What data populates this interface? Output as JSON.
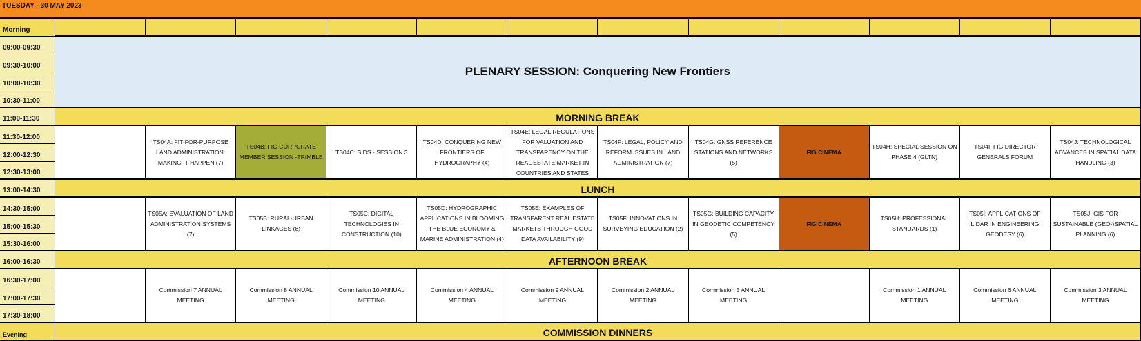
{
  "title": "TUESDAY - 30 MAY 2023",
  "labels": {
    "morning": "Morning",
    "evening": "Evening",
    "times": [
      "09:00-09:30",
      "09:30-10:00",
      "10:00-10:30",
      "10:30-11:00",
      "11:00-11:30",
      "11:30-12:00",
      "12:00-12:30",
      "12:30-13:00",
      "13:00-14:30",
      "14:30-15:00",
      "15:00-15:30",
      "15:30-16:00",
      "16:00-16:30",
      "16:30-17:00",
      "17:00-17:30",
      "17:30-18:00"
    ]
  },
  "plenary": "PLENARY SESSION: Conquering New Frontiers",
  "bands": {
    "morning_break": "MORNING BREAK",
    "lunch": "LUNCH",
    "afternoon_break": "AFTERNOON BREAK",
    "evening": "COMMISSION DINNERS"
  },
  "colors": {
    "title": "#F58B1F",
    "band": "#F2DC5A",
    "time_label": "#F5EEB5",
    "plenary": "#DEEBF6",
    "corporate": "#A4AD38",
    "cinema": "#C55A11"
  },
  "session_block_1": [
    "",
    "TS04A: FIT-FOR-PURPOSE LAND ADMINISTRATION: MAKING IT HAPPEN (7)",
    "TS04B: FIG CORPORATE MEMBER SESSION -TRIMBLE",
    "TS04C: SIDS - SESSION 3",
    "TS04D: CONQUERING NEW FRONTIERS OF HYDROGRAPHY (4)",
    "TS04E: LEGAL REGULATIONS FOR VALUATION AND TRANSPARENCY ON THE REAL ESTATE MARKET IN COUNTRIES AND STATES",
    "TS04F: LEGAL, POLICY AND REFORM ISSUES IN LAND ADMINISTRATION (7)",
    "TS04G: GNSS REFERENCE STATIONS AND NETWORKS (5)",
    "FIG CINEMA",
    "TS04H: SPECIAL SESSION ON PHASE 4 (GLTN)",
    "TS04I: FIG DIRECTOR GENERALS FORUM",
    "TS04J: TECHNOLOGICAL ADVANCES IN SPATIAL DATA HANDLING (3)"
  ],
  "session_block_2": [
    "",
    "TS05A: EVALUATION OF LAND ADMINISTRATION SYSTEMS (7)",
    "TS05B: RURAL-URBAN LINKAGES (8)",
    "TS05C: DIGITAL TECHNOLOGIES IN CONSTRUCTION (10)",
    "TS05D: HYDROGRAPHIC APPLICATIONS IN BLOOMING THE BLUE ECONOMY & MARINE ADMINISTRATION (4)",
    "TS05E: EXAMPLES OF TRANSPARENT REAL ESTATE MARKETS THROUGH GOOD DATA AVAILABILITY (9)",
    "TS05F: INNOVATIONS IN SURVEYING EDUCATION (2)",
    "TS05G: BUILDING CAPACITY IN GEODETIC COMPETENCY (5)",
    "FIG CINEMA",
    "TS05H: PROFESSIONAL STANDARDS (1)",
    "TS05I: APPLICATIONS OF LIDAR IN ENGINEERING GEODESY (6)",
    "TS05J: GIS FOR SUSTAINABLE (GEO-)SPATIAL PLANNING (6)"
  ],
  "commission_block": [
    "",
    "Commission 7 ANNUAL MEETING",
    "Commission 8 ANNUAL MEETING",
    "Commission 10 ANNUAL MEETING",
    "Commission 4 ANNUAL MEETING",
    "Commission 9 ANNUAL MEETING",
    "Commission 2 ANNUAL MEETING",
    "Commission 5 ANNUAL MEETING",
    "",
    "Commission 1 ANNUAL MEETING",
    "Commission 6 ANNUAL MEETING",
    "Commission 3 ANNUAL MEETING"
  ]
}
